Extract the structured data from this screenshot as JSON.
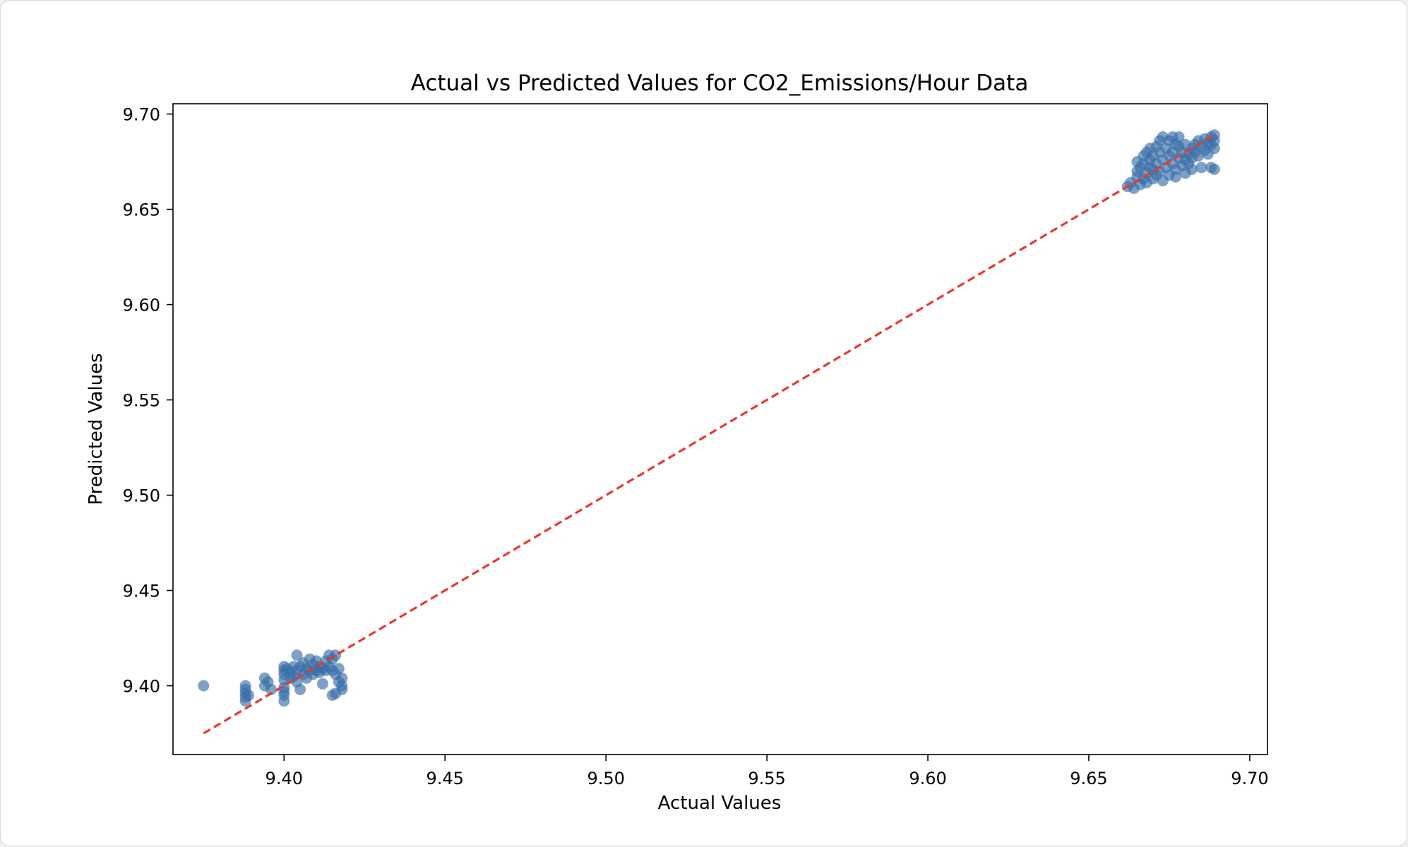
{
  "chart_data": {
    "type": "scatter",
    "title": "Actual vs Predicted Values for CO2_Emissions/Hour Data",
    "xlabel": "Actual Values",
    "ylabel": "Predicted Values",
    "xlim": [
      9.3655,
      9.7055
    ],
    "ylim": [
      9.3639,
      9.7054
    ],
    "xticks": [
      "9.40",
      "9.45",
      "9.50",
      "9.55",
      "9.60",
      "9.65",
      "9.70"
    ],
    "yticks": [
      "9.40",
      "9.45",
      "9.50",
      "9.55",
      "9.60",
      "9.65",
      "9.70"
    ],
    "grid": false,
    "legend": "none",
    "reference_line": {
      "style": "dashed",
      "color": "#e8392e",
      "from": [
        9.375,
        9.375
      ],
      "to": [
        9.689,
        9.689
      ]
    },
    "marker_color": "#3a6fa8",
    "series": [
      {
        "points": [
          [
            9.375,
            9.4
          ],
          [
            9.388,
            9.4
          ],
          [
            9.388,
            9.398
          ],
          [
            9.388,
            9.396
          ],
          [
            9.388,
            9.394
          ],
          [
            9.388,
            9.392
          ],
          [
            9.389,
            9.395
          ],
          [
            9.394,
            9.404
          ],
          [
            9.394,
            9.4
          ],
          [
            9.395,
            9.402
          ],
          [
            9.396,
            9.398
          ],
          [
            9.4,
            9.41
          ],
          [
            9.4,
            9.408
          ],
          [
            9.4,
            9.406
          ],
          [
            9.4,
            9.403
          ],
          [
            9.4,
            9.399
          ],
          [
            9.4,
            9.397
          ],
          [
            9.4,
            9.395
          ],
          [
            9.4,
            9.392
          ],
          [
            9.401,
            9.409
          ],
          [
            9.402,
            9.407
          ],
          [
            9.402,
            9.404
          ],
          [
            9.403,
            9.41
          ],
          [
            9.403,
            9.405
          ],
          [
            9.404,
            9.416
          ],
          [
            9.404,
            9.408
          ],
          [
            9.404,
            9.402
          ],
          [
            9.405,
            9.41
          ],
          [
            9.405,
            9.398
          ],
          [
            9.406,
            9.412
          ],
          [
            9.406,
            9.406
          ],
          [
            9.407,
            9.409
          ],
          [
            9.407,
            9.404
          ],
          [
            9.408,
            9.414
          ],
          [
            9.408,
            9.408
          ],
          [
            9.409,
            9.411
          ],
          [
            9.409,
            9.406
          ],
          [
            9.41,
            9.413
          ],
          [
            9.41,
            9.408
          ],
          [
            9.411,
            9.41
          ],
          [
            9.411,
            9.407
          ],
          [
            9.412,
            9.409
          ],
          [
            9.412,
            9.401
          ],
          [
            9.413,
            9.413
          ],
          [
            9.413,
            9.408
          ],
          [
            9.414,
            9.416
          ],
          [
            9.414,
            9.41
          ],
          [
            9.415,
            9.414
          ],
          [
            9.415,
            9.408
          ],
          [
            9.415,
            9.395
          ],
          [
            9.416,
            9.416
          ],
          [
            9.416,
            9.406
          ],
          [
            9.416,
            9.396
          ],
          [
            9.417,
            9.409
          ],
          [
            9.417,
            9.402
          ],
          [
            9.418,
            9.404
          ],
          [
            9.418,
            9.4
          ],
          [
            9.418,
            9.398
          ],
          [
            9.662,
            9.662
          ],
          [
            9.663,
            9.664
          ],
          [
            9.664,
            9.661
          ],
          [
            9.665,
            9.667
          ],
          [
            9.665,
            9.67
          ],
          [
            9.665,
            9.675
          ],
          [
            9.666,
            9.663
          ],
          [
            9.666,
            9.672
          ],
          [
            9.667,
            9.666
          ],
          [
            9.667,
            9.674
          ],
          [
            9.667,
            9.678
          ],
          [
            9.668,
            9.669
          ],
          [
            9.668,
            9.664
          ],
          [
            9.668,
            9.68
          ],
          [
            9.669,
            9.672
          ],
          [
            9.669,
            9.676
          ],
          [
            9.669,
            9.682
          ],
          [
            9.67,
            9.666
          ],
          [
            9.67,
            9.671
          ],
          [
            9.67,
            9.678
          ],
          [
            9.671,
            9.674
          ],
          [
            9.671,
            9.668
          ],
          [
            9.671,
            9.683
          ],
          [
            9.672,
            9.68
          ],
          [
            9.672,
            9.686
          ],
          [
            9.672,
            9.67
          ],
          [
            9.673,
            9.676
          ],
          [
            9.673,
            9.665
          ],
          [
            9.673,
            9.688
          ],
          [
            9.674,
            9.672
          ],
          [
            9.674,
            9.682
          ],
          [
            9.675,
            9.678
          ],
          [
            9.675,
            9.668
          ],
          [
            9.675,
            9.686
          ],
          [
            9.676,
            9.674
          ],
          [
            9.676,
            9.68
          ],
          [
            9.676,
            9.688
          ],
          [
            9.677,
            9.671
          ],
          [
            9.677,
            9.684
          ],
          [
            9.677,
            9.667
          ],
          [
            9.678,
            9.677
          ],
          [
            9.678,
            9.683
          ],
          [
            9.678,
            9.688
          ],
          [
            9.679,
            9.673
          ],
          [
            9.679,
            9.68
          ],
          [
            9.68,
            9.676
          ],
          [
            9.68,
            9.684
          ],
          [
            9.68,
            9.669
          ],
          [
            9.681,
            9.679
          ],
          [
            9.681,
            9.674
          ],
          [
            9.682,
            9.682
          ],
          [
            9.682,
            9.677
          ],
          [
            9.682,
            9.671
          ],
          [
            9.683,
            9.684
          ],
          [
            9.683,
            9.68
          ],
          [
            9.684,
            9.678
          ],
          [
            9.684,
            9.686
          ],
          [
            9.685,
            9.683
          ],
          [
            9.685,
            9.672
          ],
          [
            9.686,
            9.687
          ],
          [
            9.686,
            9.681
          ],
          [
            9.687,
            9.685
          ],
          [
            9.687,
            9.679
          ],
          [
            9.688,
            9.688
          ],
          [
            9.688,
            9.684
          ],
          [
            9.688,
            9.672
          ],
          [
            9.689,
            9.689
          ],
          [
            9.689,
            9.686
          ],
          [
            9.689,
            9.682
          ],
          [
            9.689,
            9.671
          ]
        ]
      }
    ]
  }
}
